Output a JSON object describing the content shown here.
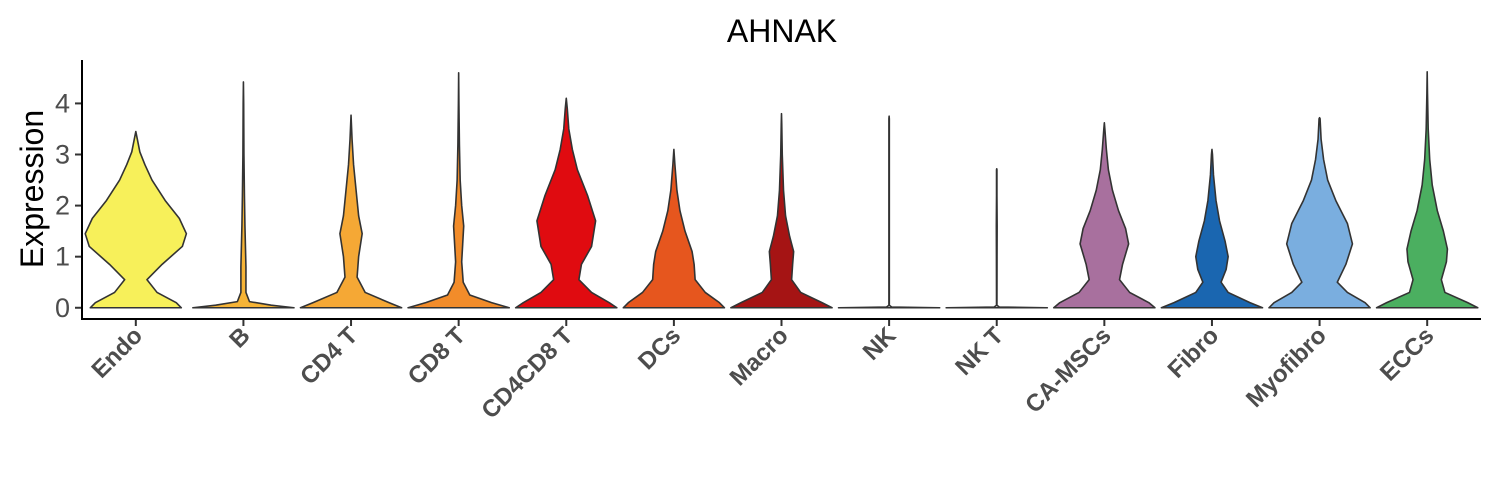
{
  "chart_data": {
    "type": "violin",
    "title": "AHNAK",
    "xlabel": "",
    "ylabel": "Expression",
    "ylim": [
      -0.22,
      4.85
    ],
    "yticks": [
      "0",
      "1",
      "2",
      "3",
      "4"
    ],
    "grid": false,
    "legend": "none",
    "categories": [
      "Endo",
      "B",
      "CD4 T",
      "CD8 T",
      "CD4CD8 T",
      "DCs",
      "Macro",
      "NK",
      "NK T",
      "CA-MSCs",
      "Fibro",
      "Myofibro",
      "ECCs"
    ],
    "series": [
      {
        "category": "Endo",
        "color": "#F7F05A",
        "max": 3.45,
        "profile": [
          [
            0,
            0.9
          ],
          [
            0.1,
            0.8
          ],
          [
            0.3,
            0.42
          ],
          [
            0.55,
            0.22
          ],
          [
            0.85,
            0.52
          ],
          [
            1.2,
            0.92
          ],
          [
            1.45,
            1.0
          ],
          [
            1.75,
            0.86
          ],
          [
            2.1,
            0.58
          ],
          [
            2.5,
            0.32
          ],
          [
            2.8,
            0.18
          ],
          [
            3.05,
            0.08
          ],
          [
            3.3,
            0.03
          ]
        ]
      },
      {
        "category": "B",
        "color": "#F6B436",
        "max": 4.42,
        "profile": [
          [
            0,
            1.0
          ],
          [
            0.05,
            0.55
          ],
          [
            0.12,
            0.12
          ],
          [
            0.3,
            0.05
          ],
          [
            0.8,
            0.05
          ],
          [
            1.6,
            0.03
          ],
          [
            2.2,
            0.02
          ],
          [
            3.0,
            0.01
          ],
          [
            4.0,
            0.005
          ]
        ]
      },
      {
        "category": "CD4 T",
        "color": "#F5A835",
        "max": 3.77,
        "profile": [
          [
            0,
            1.0
          ],
          [
            0.1,
            0.75
          ],
          [
            0.3,
            0.28
          ],
          [
            0.6,
            0.12
          ],
          [
            1.0,
            0.15
          ],
          [
            1.45,
            0.22
          ],
          [
            1.8,
            0.15
          ],
          [
            2.3,
            0.1
          ],
          [
            2.8,
            0.05
          ],
          [
            3.3,
            0.02
          ]
        ]
      },
      {
        "category": "CD8 T",
        "color": "#F28C2A",
        "max": 4.6,
        "profile": [
          [
            0,
            1.0
          ],
          [
            0.1,
            0.65
          ],
          [
            0.25,
            0.22
          ],
          [
            0.5,
            0.09
          ],
          [
            0.9,
            0.06
          ],
          [
            1.25,
            0.08
          ],
          [
            1.6,
            0.1
          ],
          [
            2.0,
            0.06
          ],
          [
            2.5,
            0.03
          ],
          [
            3.2,
            0.015
          ],
          [
            4.0,
            0.005
          ]
        ]
      },
      {
        "category": "CD4CD8 T",
        "color": "#E00B10",
        "max": 4.1,
        "profile": [
          [
            0,
            1.0
          ],
          [
            0.1,
            0.85
          ],
          [
            0.3,
            0.5
          ],
          [
            0.55,
            0.25
          ],
          [
            0.85,
            0.3
          ],
          [
            1.2,
            0.5
          ],
          [
            1.7,
            0.58
          ],
          [
            2.2,
            0.42
          ],
          [
            2.7,
            0.22
          ],
          [
            3.1,
            0.12
          ],
          [
            3.5,
            0.05
          ],
          [
            3.9,
            0.02
          ]
        ]
      },
      {
        "category": "DCs",
        "color": "#E6561E",
        "max": 3.1,
        "profile": [
          [
            0,
            1.0
          ],
          [
            0.1,
            0.9
          ],
          [
            0.3,
            0.62
          ],
          [
            0.55,
            0.42
          ],
          [
            0.85,
            0.4
          ],
          [
            1.1,
            0.36
          ],
          [
            1.5,
            0.22
          ],
          [
            1.9,
            0.12
          ],
          [
            2.3,
            0.06
          ],
          [
            2.8,
            0.02
          ]
        ]
      },
      {
        "category": "Macro",
        "color": "#A51414",
        "max": 3.8,
        "profile": [
          [
            0,
            1.0
          ],
          [
            0.1,
            0.8
          ],
          [
            0.3,
            0.38
          ],
          [
            0.55,
            0.2
          ],
          [
            0.85,
            0.22
          ],
          [
            1.1,
            0.24
          ],
          [
            1.4,
            0.16
          ],
          [
            1.8,
            0.08
          ],
          [
            2.3,
            0.04
          ],
          [
            3.0,
            0.015
          ],
          [
            3.6,
            0.005
          ]
        ]
      },
      {
        "category": "NK",
        "color": "#E8E8E8",
        "max": 3.75,
        "profile": [
          [
            0,
            1.0
          ],
          [
            0.015,
            0.05
          ],
          [
            0.05,
            0.004
          ],
          [
            1.0,
            0.004
          ],
          [
            2.0,
            0.004
          ],
          [
            3.0,
            0.004
          ],
          [
            3.7,
            0.004
          ]
        ]
      },
      {
        "category": "NK T",
        "color": "#E8E8E8",
        "max": 2.72,
        "profile": [
          [
            0,
            1.0
          ],
          [
            0.015,
            0.05
          ],
          [
            0.05,
            0.004
          ],
          [
            1.0,
            0.006
          ],
          [
            1.6,
            0.008
          ],
          [
            2.2,
            0.004
          ],
          [
            2.7,
            0.004
          ]
        ]
      },
      {
        "category": "CA-MSCs",
        "color": "#A8709E",
        "max": 3.62,
        "profile": [
          [
            0,
            1.0
          ],
          [
            0.1,
            0.88
          ],
          [
            0.3,
            0.5
          ],
          [
            0.55,
            0.3
          ],
          [
            0.85,
            0.36
          ],
          [
            1.25,
            0.48
          ],
          [
            1.55,
            0.42
          ],
          [
            1.9,
            0.28
          ],
          [
            2.3,
            0.16
          ],
          [
            2.7,
            0.08
          ],
          [
            3.1,
            0.04
          ],
          [
            3.5,
            0.01
          ]
        ]
      },
      {
        "category": "Fibro",
        "color": "#1A66B0",
        "max": 3.1,
        "profile": [
          [
            0,
            1.0
          ],
          [
            0.1,
            0.75
          ],
          [
            0.3,
            0.32
          ],
          [
            0.5,
            0.18
          ],
          [
            0.75,
            0.28
          ],
          [
            1.0,
            0.32
          ],
          [
            1.3,
            0.26
          ],
          [
            1.7,
            0.15
          ],
          [
            2.1,
            0.08
          ],
          [
            2.6,
            0.03
          ],
          [
            3.0,
            0.01
          ]
        ]
      },
      {
        "category": "Myofibro",
        "color": "#7AAEDF",
        "max": 3.72,
        "profile": [
          [
            0,
            1.0
          ],
          [
            0.1,
            0.9
          ],
          [
            0.3,
            0.55
          ],
          [
            0.5,
            0.35
          ],
          [
            0.85,
            0.52
          ],
          [
            1.25,
            0.65
          ],
          [
            1.65,
            0.55
          ],
          [
            2.1,
            0.32
          ],
          [
            2.5,
            0.16
          ],
          [
            2.9,
            0.08
          ],
          [
            3.3,
            0.03
          ],
          [
            3.7,
            0.01
          ]
        ]
      },
      {
        "category": "ECCs",
        "color": "#4BAF60",
        "max": 4.62,
        "profile": [
          [
            0,
            1.0
          ],
          [
            0.1,
            0.8
          ],
          [
            0.3,
            0.35
          ],
          [
            0.55,
            0.28
          ],
          [
            0.9,
            0.38
          ],
          [
            1.15,
            0.4
          ],
          [
            1.5,
            0.32
          ],
          [
            1.9,
            0.2
          ],
          [
            2.4,
            0.1
          ],
          [
            2.9,
            0.05
          ],
          [
            3.5,
            0.02
          ],
          [
            4.2,
            0.006
          ]
        ]
      }
    ]
  }
}
